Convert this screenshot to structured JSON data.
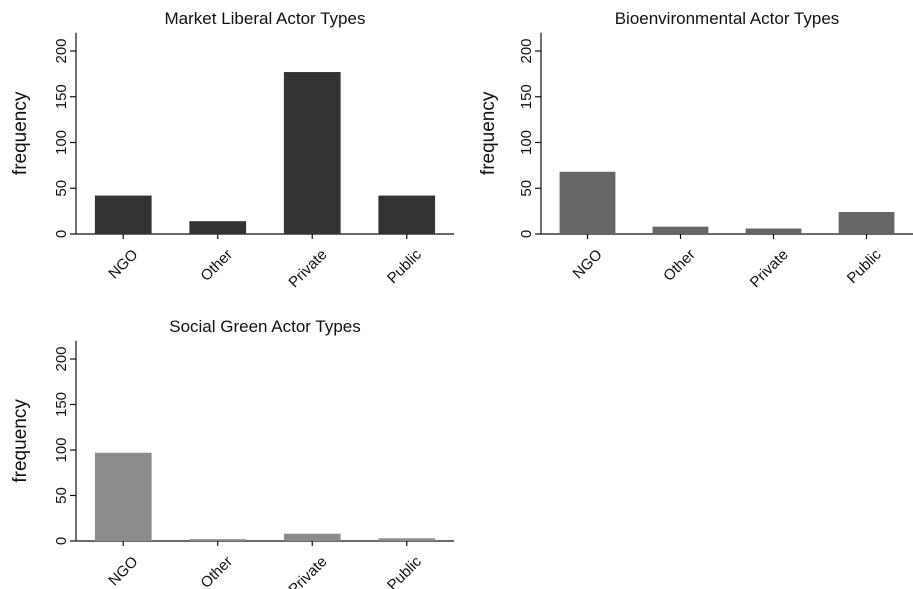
{
  "chart_data": [
    {
      "type": "bar",
      "title": "Market Liberal Actor Types",
      "ylabel": "frequency",
      "xlabel": "",
      "categories": [
        "NGO",
        "Other",
        "Private",
        "Public"
      ],
      "values": [
        42,
        14,
        177,
        42
      ],
      "ylim": [
        0,
        220
      ],
      "yticks": [
        0,
        50,
        100,
        150,
        200
      ],
      "bar_color": "#333333",
      "grid": false
    },
    {
      "type": "bar",
      "title": "Bioenvironmental Actor Types",
      "ylabel": "frequency",
      "xlabel": "",
      "categories": [
        "NGO",
        "Other",
        "Private",
        "Public"
      ],
      "values": [
        68,
        8,
        6,
        24
      ],
      "ylim": [
        0,
        220
      ],
      "yticks": [
        0,
        50,
        100,
        150,
        200
      ],
      "bar_color": "#666666",
      "grid": false
    },
    {
      "type": "bar",
      "title": "Social Green Actor Types",
      "ylabel": "frequency",
      "xlabel": "",
      "categories": [
        "NGO",
        "Other",
        "Private",
        "Public"
      ],
      "values": [
        97,
        2,
        8,
        3
      ],
      "ylim": [
        0,
        220
      ],
      "yticks": [
        0,
        50,
        100,
        150,
        200
      ],
      "bar_color": "#8c8c8c",
      "grid": false
    }
  ]
}
